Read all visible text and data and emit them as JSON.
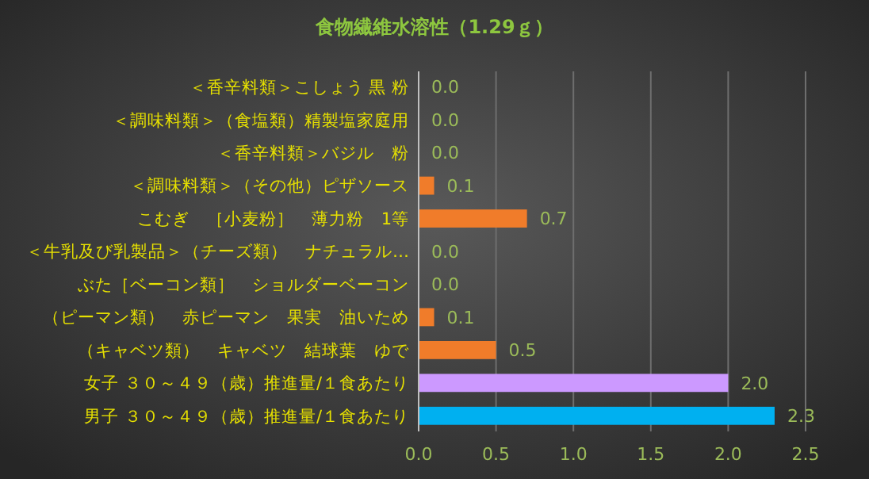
{
  "chart_data": {
    "type": "bar",
    "orientation": "horizontal",
    "title": "食物繊維水溶性（1.29ｇ）",
    "categories": [
      "＜香辛料類＞こしょう 黒 粉",
      "＜調味料類＞（食塩類）精製塩家庭用",
      "＜香辛料類＞バジル　粉",
      "＜調味料類＞（その他）ピザソース",
      "こむぎ　［小麦粉］　薄力粉　1等",
      "＜牛乳及び乳製品＞（チーズ類）　ナチュラル…",
      "ぶた［ベーコン類］　ショルダーベーコン",
      "（ピーマン類）　赤ピーマン　果実　油いため",
      "（キャベツ類）　キャベツ　結球葉　ゆで",
      "女子 ３０～４９（歳）推進量/１食あたり",
      "男子 ３０～４９（歳）推進量/１食あたり"
    ],
    "values": [
      0.0,
      0.0,
      0.0,
      0.1,
      0.7,
      0.0,
      0.0,
      0.1,
      0.5,
      2.0,
      2.3
    ],
    "colors": [
      "#f07c2a",
      "#f07c2a",
      "#f07c2a",
      "#f07c2a",
      "#f07c2a",
      "#f07c2a",
      "#f07c2a",
      "#f07c2a",
      "#f07c2a",
      "#cc99ff",
      "#00b0f0"
    ],
    "xlim": [
      0,
      2.5
    ],
    "xticks": [
      {
        "value": 0,
        "label": "0.0"
      },
      {
        "value": 0.5,
        "label": "0.5"
      },
      {
        "value": 1,
        "label": "1.0"
      },
      {
        "value": 1.5,
        "label": "1.5"
      },
      {
        "value": 2,
        "label": "2.0"
      },
      {
        "value": 2.5,
        "label": "2.5"
      }
    ],
    "value_labels": [
      "0.0",
      "0.0",
      "0.0",
      "0.1",
      "0.7",
      "0.0",
      "0.0",
      "0.1",
      "0.5",
      "2.0",
      "2.3"
    ],
    "grid": "x"
  }
}
